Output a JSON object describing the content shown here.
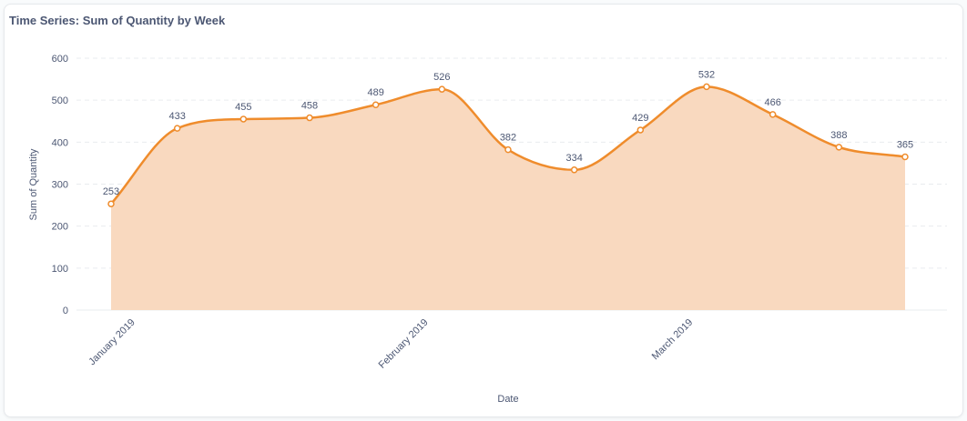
{
  "card": {
    "title": "Time Series: Sum of Quantity by Week"
  },
  "colors": {
    "line": "#ef8c2c",
    "area": "#f9d9bf",
    "grid": "#e9ecef",
    "point_fill": "#ffffff",
    "text": "#4c5773"
  },
  "chart_data": {
    "type": "area",
    "xlabel": "Date",
    "ylabel": "Sum of Quantity",
    "ylim": [
      0,
      600
    ],
    "yticks": [
      0,
      100,
      200,
      300,
      400,
      500,
      600
    ],
    "grid": true,
    "x": [
      "2018-12-30",
      "2019-01-06",
      "2019-01-13",
      "2019-01-20",
      "2019-01-27",
      "2019-02-03",
      "2019-02-10",
      "2019-02-17",
      "2019-02-24",
      "2019-03-03",
      "2019-03-10",
      "2019-03-17",
      "2019-03-24"
    ],
    "values": [
      253,
      433,
      455,
      458,
      489,
      526,
      382,
      334,
      429,
      532,
      466,
      388,
      365
    ],
    "xticks": [
      {
        "date": "2019-01-01",
        "label": "January 2019"
      },
      {
        "date": "2019-02-01",
        "label": "February 2019"
      },
      {
        "date": "2019-03-01",
        "label": "March 2019"
      }
    ]
  }
}
